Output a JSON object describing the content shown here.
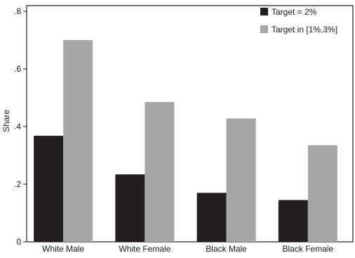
{
  "chart_data": {
    "type": "bar",
    "title": "",
    "xlabel": "",
    "ylabel": "Share",
    "ylim": [
      0,
      0.8
    ],
    "yticks": [
      0,
      0.2,
      0.4,
      0.6,
      0.8
    ],
    "ytick_labels": [
      "0",
      ".2",
      ".4",
      ".6",
      ".8"
    ],
    "categories": [
      "White Male",
      "White Female",
      "Black Male",
      "Black Female"
    ],
    "series": [
      {
        "name": "Target = 2%",
        "color": "#231f20",
        "values": [
          0.368,
          0.234,
          0.17,
          0.145
        ]
      },
      {
        "name": "Target in [1%,3%]",
        "color": "#a6a6a8",
        "values": [
          0.7,
          0.485,
          0.428,
          0.335
        ]
      }
    ],
    "grid": false,
    "legend_position": "top-right"
  }
}
